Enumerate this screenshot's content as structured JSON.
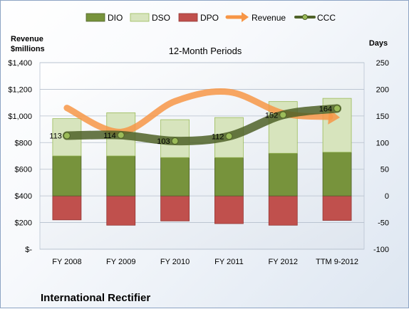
{
  "chart_data": {
    "type": "bar",
    "title": "12-Month Periods",
    "company": "International Rectifier",
    "left_axis_label": "Revenue\n$millions",
    "right_axis_label": "Days",
    "categories": [
      "FY 2008",
      "FY 2009",
      "FY 2010",
      "FY 2011",
      "FY 2012",
      "TTM 9-2012"
    ],
    "left_axis": {
      "ylim": [
        0,
        1400
      ],
      "ticks": [
        0,
        200,
        400,
        600,
        800,
        1000,
        1200,
        1400
      ],
      "tick_labels": [
        "$-",
        "$200",
        "$400",
        "$600",
        "$800",
        "$1,000",
        "$1,200",
        "$1,400"
      ]
    },
    "right_axis": {
      "ylim": [
        -100,
        250
      ],
      "ticks": [
        -100,
        -50,
        0,
        50,
        100,
        150,
        200,
        250
      ],
      "tick_labels": [
        "-100",
        "-50",
        "0",
        "50",
        "100",
        "150",
        "200",
        "250"
      ]
    },
    "grid": true,
    "legend_position": "top",
    "series": [
      {
        "name": "DIO",
        "axis": "right",
        "style": "stacked-bar",
        "color": "#77933c",
        "values": [
          75,
          75,
          72,
          72,
          80,
          82
        ]
      },
      {
        "name": "DSO",
        "axis": "right",
        "style": "stacked-bar",
        "color": "#d7e4bd",
        "values": [
          70,
          81,
          71,
          75,
          97,
          101
        ]
      },
      {
        "name": "DPO",
        "axis": "right",
        "style": "negative-bar",
        "color": "#c0504d",
        "values": [
          -45,
          -55,
          -47,
          -52,
          -55,
          -46
        ]
      },
      {
        "name": "Revenue",
        "axis": "left",
        "style": "smooth-line",
        "color": "#f79646",
        "values": [
          1060,
          880,
          1110,
          1180,
          1020,
          990
        ]
      },
      {
        "name": "CCC",
        "axis": "right",
        "style": "smooth-line",
        "color": "#4f6228",
        "values": [
          113,
          114,
          103,
          112,
          152,
          164
        ]
      }
    ],
    "data_labels": [
      "113",
      "114",
      "103",
      "112",
      "152",
      "164"
    ]
  }
}
